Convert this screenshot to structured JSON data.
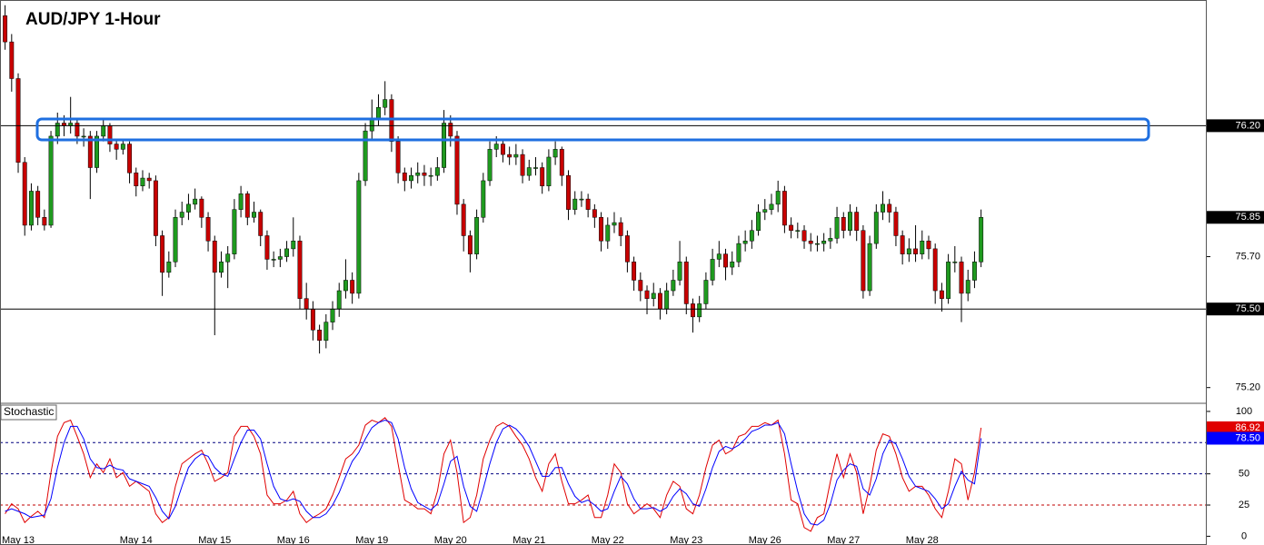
{
  "chart_data": [
    {
      "type": "candlestick",
      "title": "AUD/JPY 1-Hour",
      "open": [
        76.62,
        76.52,
        76.38,
        76.06,
        75.82,
        75.95,
        75.85,
        75.82,
        76.16,
        76.21,
        76.2,
        76.21,
        76.16,
        76.16,
        76.04,
        76.16,
        76.2,
        76.13,
        76.11,
        76.13,
        76.02,
        75.97,
        76.0,
        75.99,
        75.78,
        75.64,
        75.68,
        75.85,
        75.87,
        75.9,
        75.92,
        75.85,
        75.76,
        75.64,
        75.68,
        75.71,
        75.88,
        75.94,
        75.85,
        75.87,
        75.78,
        75.69,
        75.69,
        75.7,
        75.73,
        75.76,
        75.54,
        75.5,
        75.42,
        75.38,
        75.45,
        75.5,
        75.57,
        75.61,
        75.56,
        75.99,
        76.18,
        76.23,
        76.27,
        76.3,
        76.14,
        76.02,
        75.99,
        76.01,
        76.02,
        76.01,
        76.01,
        76.04,
        76.21,
        76.16,
        75.9,
        75.78,
        75.71,
        75.85,
        75.99,
        76.11,
        76.13,
        76.09,
        76.08,
        76.09,
        76.01,
        76.04,
        76.04,
        75.97,
        76.08,
        76.11,
        76.01,
        75.88,
        75.92,
        75.92,
        75.88,
        75.85,
        75.76,
        75.82,
        75.83,
        75.78,
        75.68,
        75.61,
        75.57,
        75.54,
        75.56,
        75.5,
        75.57,
        75.61,
        75.68,
        75.52,
        75.47,
        75.52,
        75.61,
        75.69,
        75.71,
        75.66,
        75.68,
        75.75,
        75.76,
        75.8,
        75.87,
        75.88,
        75.9,
        75.95,
        75.82,
        75.8,
        75.8,
        75.76,
        75.75,
        75.75,
        75.76,
        75.77,
        75.85,
        75.8,
        75.87,
        75.8,
        75.57,
        75.75,
        75.87,
        75.9,
        75.87,
        75.78,
        75.71,
        75.73,
        75.71,
        75.76,
        75.73,
        75.57,
        75.54,
        75.68,
        75.68,
        75.56,
        75.61,
        75.68
      ],
      "high": [
        76.66,
        76.55,
        76.4,
        76.08,
        75.98,
        75.97,
        75.88,
        76.18,
        76.25,
        76.24,
        76.31,
        76.23,
        76.19,
        76.18,
        76.18,
        76.23,
        76.21,
        76.15,
        76.15,
        76.14,
        76.04,
        76.03,
        76.02,
        76.01,
        75.8,
        75.72,
        75.88,
        75.91,
        75.94,
        75.96,
        75.93,
        75.87,
        75.78,
        75.72,
        75.74,
        75.92,
        75.97,
        75.95,
        75.91,
        75.88,
        75.8,
        75.72,
        75.73,
        75.76,
        75.85,
        75.78,
        75.6,
        75.53,
        75.44,
        75.48,
        75.53,
        75.6,
        75.69,
        75.64,
        76.02,
        76.21,
        76.3,
        76.32,
        76.37,
        76.32,
        76.16,
        76.04,
        76.04,
        76.06,
        76.05,
        76.04,
        76.08,
        76.26,
        76.24,
        76.18,
        75.92,
        75.8,
        75.88,
        76.02,
        76.14,
        76.16,
        76.15,
        76.12,
        76.13,
        76.11,
        76.07,
        76.08,
        76.06,
        76.11,
        76.14,
        76.12,
        76.03,
        75.95,
        75.95,
        75.94,
        75.9,
        75.87,
        75.85,
        75.87,
        75.85,
        75.8,
        75.7,
        75.64,
        75.59,
        75.6,
        75.58,
        75.6,
        75.65,
        75.76,
        75.7,
        75.54,
        75.55,
        75.64,
        75.73,
        75.76,
        75.73,
        75.72,
        75.78,
        75.8,
        75.84,
        75.9,
        75.92,
        75.94,
        75.99,
        75.97,
        75.85,
        75.83,
        75.82,
        75.79,
        75.78,
        75.79,
        75.81,
        75.89,
        75.87,
        75.9,
        75.89,
        75.82,
        75.78,
        75.9,
        75.95,
        75.92,
        75.89,
        75.8,
        75.77,
        75.82,
        75.8,
        75.78,
        75.75,
        75.6,
        75.71,
        75.74,
        75.7,
        75.65,
        75.72,
        75.88
      ],
      "low": [
        76.49,
        76.33,
        76.02,
        75.78,
        75.8,
        75.82,
        75.8,
        75.81,
        76.13,
        76.16,
        76.17,
        76.13,
        76.12,
        75.92,
        76.02,
        76.14,
        76.1,
        76.07,
        76.09,
        75.98,
        75.93,
        75.95,
        75.96,
        75.74,
        75.55,
        75.62,
        75.66,
        75.82,
        75.84,
        75.88,
        75.81,
        75.72,
        75.4,
        75.62,
        75.58,
        75.69,
        75.85,
        75.82,
        75.83,
        75.74,
        75.65,
        75.66,
        75.66,
        75.68,
        75.7,
        75.5,
        75.46,
        75.38,
        75.33,
        75.35,
        75.42,
        75.47,
        75.54,
        75.52,
        75.54,
        75.97,
        76.15,
        76.2,
        76.24,
        76.1,
        75.98,
        75.95,
        75.96,
        75.98,
        75.97,
        75.97,
        75.99,
        76.02,
        76.12,
        75.86,
        75.72,
        75.64,
        75.69,
        75.83,
        75.97,
        76.08,
        76.06,
        76.05,
        76.05,
        75.98,
        75.99,
        76.01,
        75.94,
        75.95,
        76.05,
        75.97,
        75.84,
        75.86,
        75.89,
        75.85,
        75.81,
        75.72,
        75.73,
        75.79,
        75.74,
        75.64,
        75.57,
        75.53,
        75.48,
        75.51,
        75.46,
        75.48,
        75.55,
        75.59,
        75.48,
        75.41,
        75.45,
        75.5,
        75.59,
        75.66,
        75.61,
        75.63,
        75.66,
        75.72,
        75.73,
        75.78,
        75.84,
        75.86,
        75.87,
        75.79,
        75.77,
        75.77,
        75.73,
        75.72,
        75.72,
        75.72,
        75.73,
        75.75,
        75.77,
        75.78,
        75.76,
        75.54,
        75.55,
        75.73,
        75.84,
        75.83,
        75.74,
        75.67,
        75.68,
        75.68,
        75.69,
        75.69,
        75.52,
        75.49,
        75.52,
        75.64,
        75.45,
        75.53,
        75.58,
        75.66
      ],
      "close": [
        76.52,
        76.38,
        76.06,
        75.82,
        75.95,
        75.85,
        75.82,
        76.16,
        76.21,
        76.2,
        76.21,
        76.16,
        76.16,
        76.04,
        76.16,
        76.2,
        76.13,
        76.11,
        76.13,
        76.02,
        75.97,
        76.0,
        75.99,
        75.78,
        75.64,
        75.68,
        75.85,
        75.87,
        75.9,
        75.92,
        75.85,
        75.76,
        75.64,
        75.68,
        75.71,
        75.88,
        75.94,
        75.85,
        75.87,
        75.78,
        75.69,
        75.69,
        75.7,
        75.73,
        75.76,
        75.54,
        75.5,
        75.42,
        75.38,
        75.45,
        75.5,
        75.57,
        75.61,
        75.56,
        75.99,
        76.18,
        76.23,
        76.27,
        76.3,
        76.14,
        76.02,
        75.99,
        76.01,
        76.02,
        76.01,
        76.01,
        76.04,
        76.21,
        76.16,
        75.9,
        75.78,
        75.71,
        75.85,
        75.99,
        76.11,
        76.13,
        76.09,
        76.08,
        76.09,
        76.01,
        76.04,
        76.04,
        75.97,
        76.08,
        76.11,
        76.01,
        75.88,
        75.92,
        75.92,
        75.88,
        75.85,
        75.76,
        75.82,
        75.83,
        75.78,
        75.68,
        75.61,
        75.57,
        75.54,
        75.56,
        75.5,
        75.57,
        75.61,
        75.68,
        75.52,
        75.47,
        75.52,
        75.61,
        75.69,
        75.71,
        75.66,
        75.68,
        75.75,
        75.76,
        75.8,
        75.87,
        75.88,
        75.9,
        75.95,
        75.82,
        75.8,
        75.8,
        75.76,
        75.75,
        75.75,
        75.76,
        75.77,
        75.85,
        75.8,
        75.87,
        75.8,
        75.57,
        75.75,
        75.87,
        75.9,
        75.87,
        75.78,
        75.71,
        75.73,
        75.71,
        75.76,
        75.73,
        75.57,
        75.54,
        75.68,
        75.68,
        75.56,
        75.61,
        75.68,
        75.85
      ],
      "up_color": "#1f9a1f",
      "down_color": "#c80000",
      "ylim": [
        75.14,
        76.68
      ],
      "yticks": [
        {
          "value": 75.2,
          "label": "75.20"
        },
        {
          "value": 75.7,
          "label": "75.70"
        }
      ],
      "levels": [
        {
          "value": 75.5,
          "label": "75.50"
        },
        {
          "value": 76.2,
          "label": "76.20"
        }
      ],
      "last_price": {
        "value": 75.85,
        "label": "75.85"
      }
    },
    {
      "type": "line",
      "title": "Stochastic",
      "categories": [
        null,
        null,
        "May 13",
        null,
        null,
        null,
        null,
        null,
        null,
        null,
        null,
        null,
        null,
        null,
        null,
        null,
        null,
        null,
        null,
        null,
        "May 14",
        null,
        null,
        null,
        null,
        null,
        null,
        null,
        null,
        null,
        null,
        null,
        "May 15",
        null,
        null,
        null,
        null,
        null,
        null,
        null,
        null,
        null,
        null,
        null,
        "May 16",
        null,
        null,
        null,
        null,
        null,
        null,
        null,
        null,
        null,
        null,
        null,
        "May 19",
        null,
        null,
        null,
        null,
        null,
        null,
        null,
        null,
        null,
        null,
        null,
        "May 20",
        null,
        null,
        null,
        null,
        null,
        null,
        null,
        null,
        null,
        null,
        null,
        "May 21",
        null,
        null,
        null,
        null,
        null,
        null,
        null,
        null,
        null,
        null,
        null,
        "May 22",
        null,
        null,
        null,
        null,
        null,
        null,
        null,
        null,
        null,
        null,
        null,
        "May 23",
        null,
        null,
        null,
        null,
        null,
        null,
        null,
        null,
        null,
        null,
        null,
        "May 26",
        null,
        null,
        null,
        null,
        null,
        null,
        null,
        null,
        null,
        null,
        null,
        "May 27",
        null,
        null,
        null,
        null,
        null,
        null,
        null,
        null,
        null,
        null,
        null,
        "May 28",
        null,
        null,
        null,
        null,
        null,
        null,
        null,
        null,
        null
      ],
      "series": [
        {
          "color": "#e00000",
          "last_label": "86.92",
          "values": [
            18,
            26,
            22,
            11,
            16,
            20,
            15,
            51,
            80,
            91,
            93,
            80,
            66,
            47,
            58,
            51,
            62,
            47,
            51,
            40,
            44,
            40,
            36,
            18,
            11,
            15,
            40,
            58,
            62,
            66,
            69,
            58,
            44,
            47,
            51,
            80,
            88,
            88,
            80,
            66,
            33,
            26,
            26,
            29,
            36,
            18,
            11,
            15,
            18,
            22,
            33,
            47,
            62,
            66,
            73,
            89,
            93,
            91,
            95,
            88,
            58,
            29,
            26,
            22,
            22,
            18,
            36,
            66,
            77,
            51,
            11,
            15,
            33,
            62,
            77,
            88,
            91,
            88,
            80,
            73,
            62,
            47,
            36,
            58,
            66,
            44,
            26,
            26,
            29,
            33,
            15,
            15,
            33,
            58,
            51,
            26,
            18,
            22,
            26,
            22,
            15,
            33,
            44,
            40,
            22,
            18,
            33,
            55,
            73,
            77,
            66,
            69,
            80,
            82,
            88,
            88,
            91,
            89,
            93,
            66,
            29,
            26,
            7,
            4,
            15,
            18,
            44,
            66,
            47,
            66,
            51,
            18,
            40,
            69,
            82,
            80,
            66,
            47,
            36,
            40,
            40,
            33,
            22,
            15,
            36,
            62,
            58,
            29,
            51,
            86.92
          ]
        },
        {
          "color": "#0000ff",
          "last_label": "78.50",
          "values": [
            20,
            22,
            20,
            18,
            15,
            16,
            17,
            30,
            55,
            75,
            88,
            88,
            78,
            62,
            55,
            54,
            57,
            54,
            53,
            46,
            44,
            42,
            40,
            31,
            20,
            14,
            24,
            40,
            55,
            62,
            66,
            64,
            55,
            50,
            48,
            62,
            75,
            85,
            85,
            78,
            58,
            40,
            30,
            28,
            30,
            28,
            20,
            15,
            15,
            18,
            25,
            35,
            48,
            60,
            67,
            78,
            87,
            91,
            93,
            91,
            78,
            55,
            38,
            27,
            24,
            21,
            26,
            42,
            60,
            64,
            40,
            24,
            20,
            38,
            58,
            75,
            86,
            89,
            86,
            80,
            72,
            60,
            48,
            48,
            55,
            55,
            42,
            32,
            27,
            29,
            25,
            20,
            22,
            36,
            48,
            42,
            30,
            22,
            22,
            23,
            20,
            23,
            32,
            38,
            34,
            26,
            24,
            38,
            55,
            68,
            72,
            70,
            73,
            78,
            84,
            86,
            89,
            89,
            91,
            82,
            58,
            36,
            18,
            10,
            9,
            13,
            26,
            45,
            53,
            58,
            56,
            38,
            33,
            46,
            66,
            77,
            74,
            62,
            48,
            40,
            38,
            36,
            30,
            22,
            26,
            40,
            52,
            45,
            42,
            78.5
          ]
        }
      ],
      "ylim": [
        -7,
        106.5
      ],
      "yticks": [
        0,
        25,
        50,
        100
      ],
      "levels": [
        {
          "value": 75,
          "color": "#000080"
        },
        {
          "value": 50,
          "color": "#000080"
        },
        {
          "value": 25,
          "color": "#c00000"
        }
      ]
    }
  ]
}
